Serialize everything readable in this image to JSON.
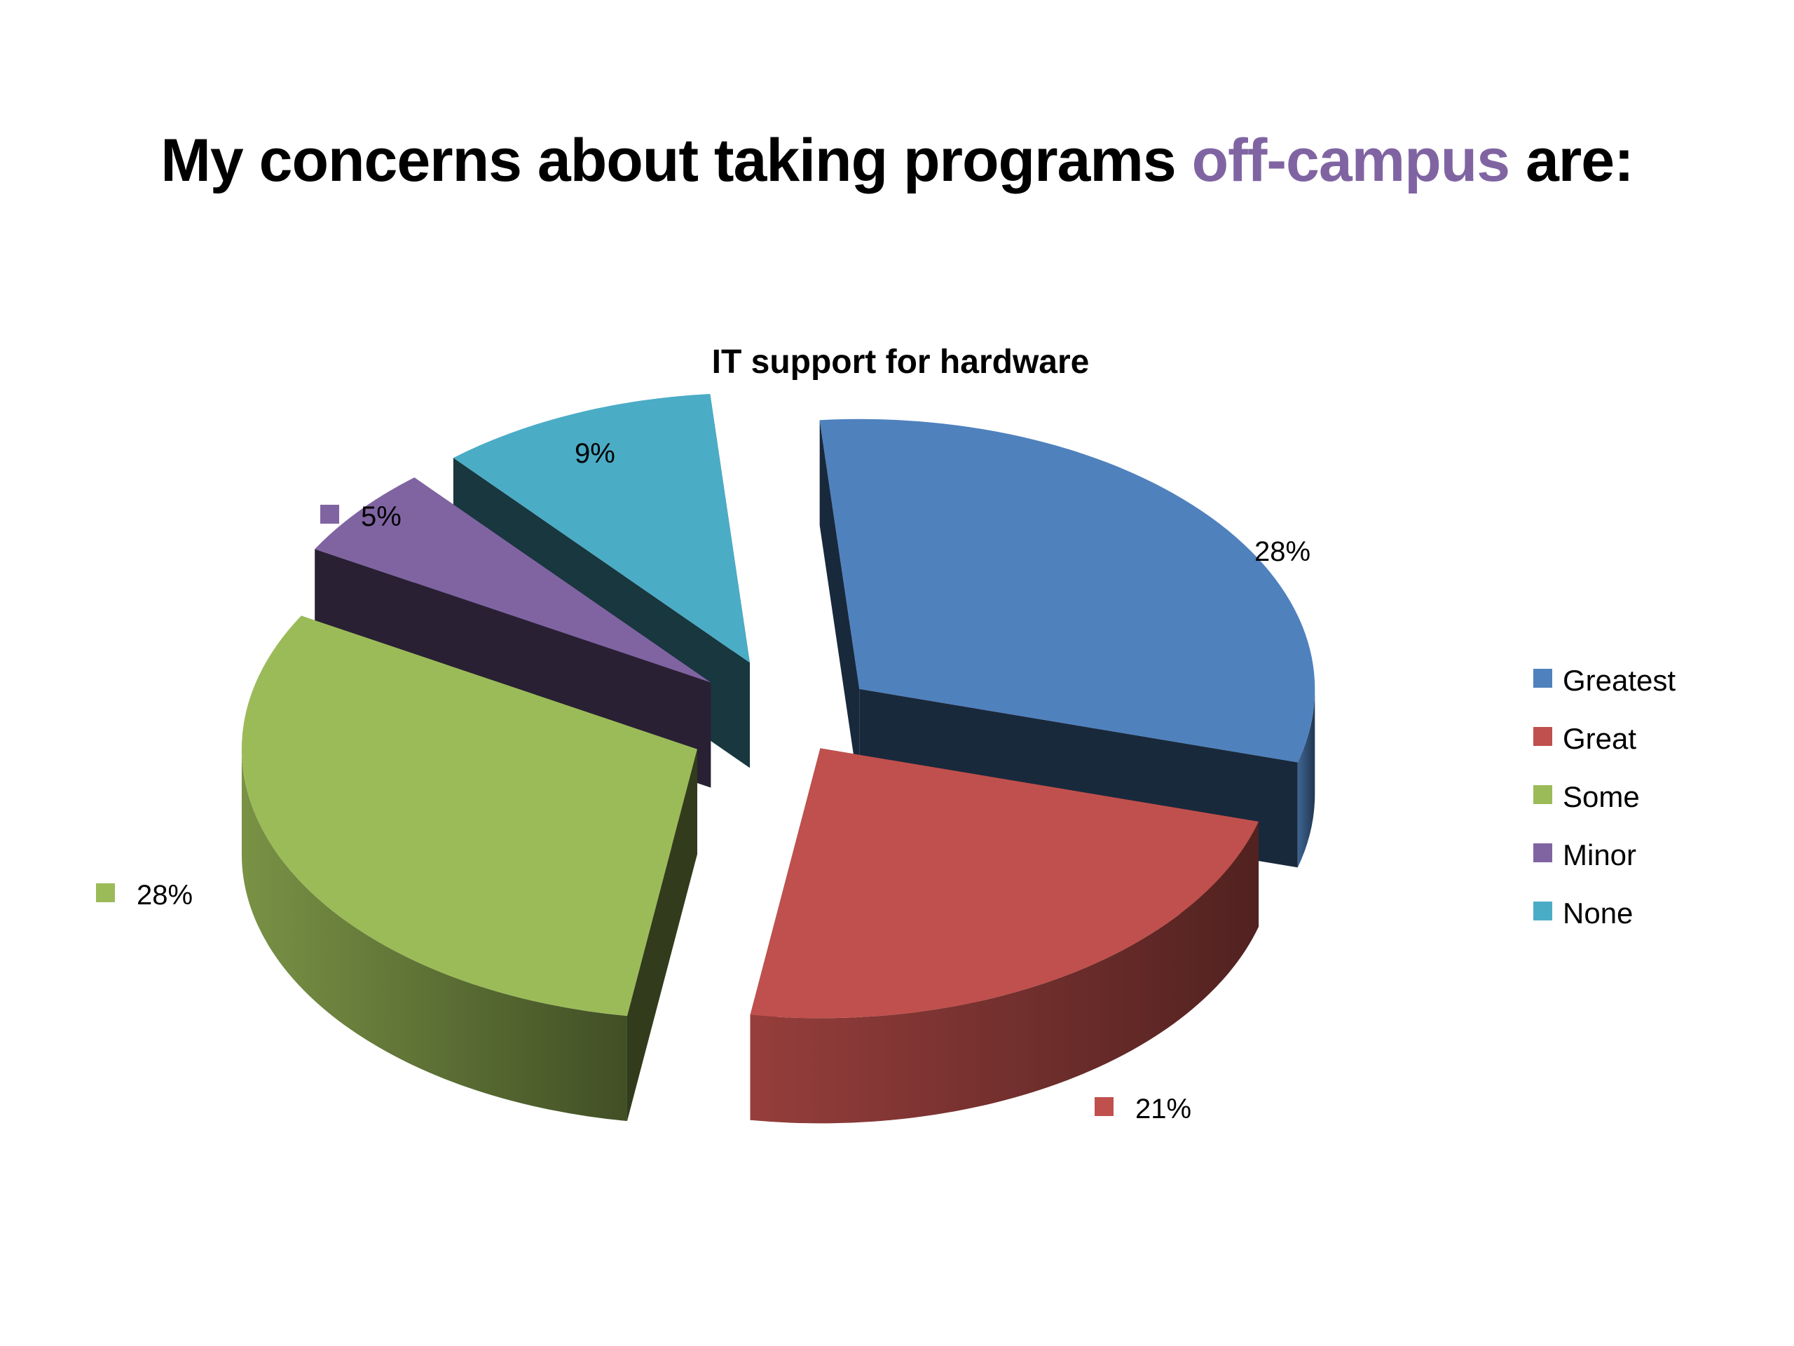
{
  "slide": {
    "title_before": "My concerns about taking programs",
    "title_accent": "off-campus",
    "title_after": "are:",
    "accent_color": "#8064a2"
  },
  "chart_data": {
    "type": "pie",
    "title": "IT support for hardware",
    "legend_position": "right",
    "categories": [
      "Greatest",
      "Great",
      "Some",
      "Minor",
      "None"
    ],
    "values": [
      28,
      21,
      28,
      5,
      9
    ],
    "labels": [
      "28%",
      "21%",
      "28%",
      "5%",
      "9%"
    ],
    "colors": [
      "#4f81bd",
      "#c0504d",
      "#9bbb59",
      "#8064a2",
      "#4bacc6"
    ]
  }
}
